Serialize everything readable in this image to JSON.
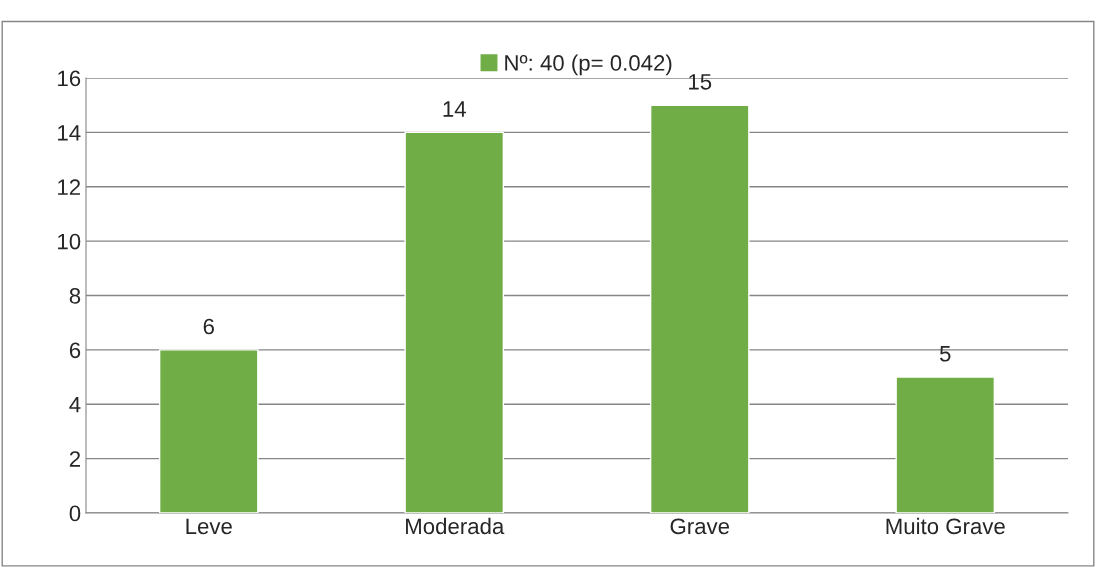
{
  "chart_data": {
    "type": "bar",
    "categories": [
      "Leve",
      "Moderada",
      "Grave",
      "Muito Grave"
    ],
    "series": [
      {
        "name": "Nº: 40 (p= 0.042)",
        "color": "#70ad47",
        "values": [
          6,
          14,
          15,
          5
        ]
      }
    ],
    "ylim": [
      0,
      16
    ],
    "yticks": [
      0,
      2,
      4,
      6,
      8,
      10,
      12,
      14,
      16
    ],
    "grid": "y",
    "legend": "top",
    "data_labels": true
  }
}
